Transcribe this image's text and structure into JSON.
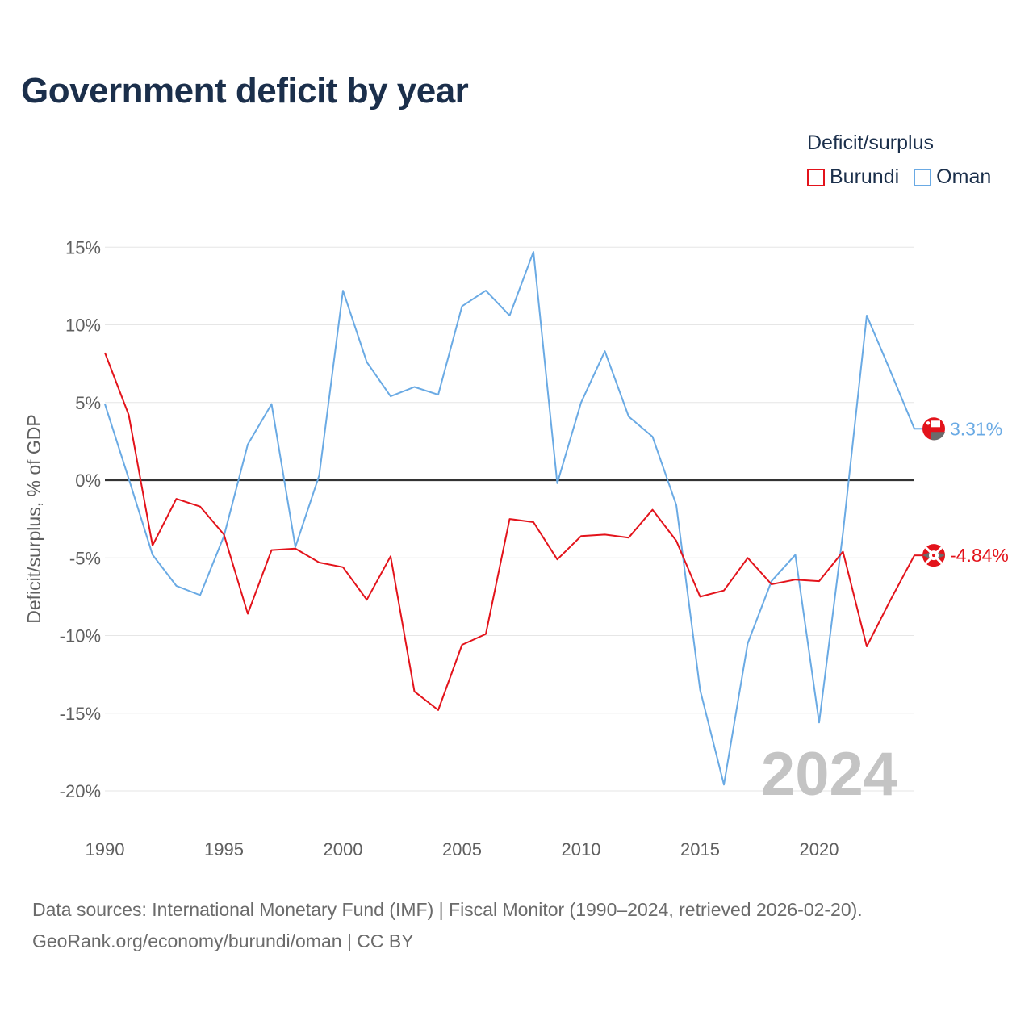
{
  "title": "Government deficit by year",
  "legend": {
    "title": "Deficit/surplus",
    "items": [
      {
        "label": "Burundi",
        "color": "#e3131b"
      },
      {
        "label": "Oman",
        "color": "#6aaae4"
      }
    ]
  },
  "source": {
    "line1": "Data sources: International Monetary Fund (IMF) | Fiscal Monitor (1990–2024, retrieved 2026-02-20).",
    "line2": "GeoRank.org/economy/burundi/oman | CC BY"
  },
  "chart_data": {
    "type": "line",
    "title": "Government deficit by year",
    "xlabel": "",
    "ylabel": "Deficit/surplus, % of GDP",
    "xlim": [
      1990,
      2024
    ],
    "ylim": [
      -22,
      15.5
    ],
    "x_ticks": [
      1990,
      1995,
      2000,
      2005,
      2010,
      2015,
      2020
    ],
    "x_tick_labels": [
      "1990",
      "1995",
      "2000",
      "2005",
      "2010",
      "2015",
      "2020"
    ],
    "y_ticks": [
      15,
      10,
      5,
      0,
      -5,
      -10,
      -15,
      -20
    ],
    "y_tick_labels": [
      "15%",
      "10%",
      "5%",
      "0%",
      "-5%",
      "-10%",
      "-15%",
      "-20%"
    ],
    "watermark": "2024",
    "x": [
      1990,
      1991,
      1992,
      1993,
      1994,
      1995,
      1996,
      1997,
      1998,
      1999,
      2000,
      2001,
      2002,
      2003,
      2004,
      2005,
      2006,
      2007,
      2008,
      2009,
      2010,
      2011,
      2012,
      2013,
      2014,
      2015,
      2016,
      2017,
      2018,
      2019,
      2020,
      2021,
      2022,
      2023,
      2024
    ],
    "series": [
      {
        "name": "Burundi",
        "color": "#e3131b",
        "end_label": "-4.84%",
        "values": [
          8.2,
          4.2,
          -4.2,
          -1.2,
          -1.7,
          -3.5,
          -8.6,
          -4.5,
          -4.4,
          -5.3,
          -5.6,
          -7.7,
          -4.9,
          -13.6,
          -14.8,
          -10.6,
          -9.9,
          -2.5,
          -2.7,
          -5.1,
          -3.6,
          -3.5,
          -3.7,
          -1.9,
          -3.9,
          -7.5,
          -7.1,
          -5.0,
          -6.7,
          -6.4,
          -6.5,
          -4.6,
          -10.7,
          -7.7,
          -4.84
        ]
      },
      {
        "name": "Oman",
        "color": "#6aaae4",
        "end_label": "3.31%",
        "values": [
          4.9,
          0.1,
          -4.8,
          -6.8,
          -7.4,
          -3.6,
          2.3,
          4.9,
          -4.3,
          0.3,
          12.2,
          7.6,
          5.4,
          6.0,
          5.5,
          11.2,
          12.2,
          10.6,
          14.7,
          -0.2,
          5.0,
          8.3,
          4.1,
          2.8,
          -1.6,
          -13.5,
          -19.6,
          -10.5,
          -6.5,
          -4.8,
          -15.6,
          -3.4,
          10.6,
          7.0,
          3.31
        ]
      }
    ]
  }
}
